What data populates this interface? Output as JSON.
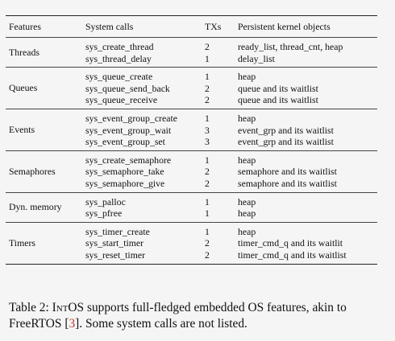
{
  "table": {
    "headers": [
      "Features",
      "System calls",
      "TXs",
      "Persistent kernel objects"
    ],
    "groups": [
      {
        "feature": "Threads",
        "rows": [
          [
            "sys_create_thread",
            "2",
            "ready_list, thread_cnt, heap"
          ],
          [
            "sys_thread_delay",
            "1",
            "delay_list"
          ]
        ]
      },
      {
        "feature": "Queues",
        "rows": [
          [
            "sys_queue_create",
            "1",
            "heap"
          ],
          [
            "sys_queue_send_back",
            "2",
            "queue and its waitlist"
          ],
          [
            "sys_queue_receive",
            "2",
            "queue and its waitlist"
          ]
        ]
      },
      {
        "feature": "Events",
        "rows": [
          [
            "sys_event_group_create",
            "1",
            "heap"
          ],
          [
            "sys_event_group_wait",
            "3",
            "event_grp and its waitlist"
          ],
          [
            "sys_event_group_set",
            "3",
            "event_grp and its waitlist"
          ]
        ]
      },
      {
        "feature": "Semaphores",
        "rows": [
          [
            "sys_create_semaphore",
            "1",
            "heap"
          ],
          [
            "sys_semaphore_take",
            "2",
            "semaphore and its waitlist"
          ],
          [
            "sys_semaphore_give",
            "2",
            "semaphore and its waitlist"
          ]
        ]
      },
      {
        "feature": "Dyn. memory",
        "rows": [
          [
            "sys_palloc",
            "1",
            "heap"
          ],
          [
            "sys_pfree",
            "1",
            "heap"
          ]
        ]
      },
      {
        "feature": "Timers",
        "rows": [
          [
            "sys_timer_create",
            "1",
            "heap"
          ],
          [
            "sys_start_timer",
            "2",
            "timer_cmd_q and its waitlit"
          ],
          [
            "sys_reset_timer",
            "2",
            "timer_cmd_q and its waitlist"
          ]
        ]
      }
    ]
  },
  "caption": {
    "prefix": "Table 2: ",
    "brand": "IntOS",
    "text_before_cite": " supports full-fledged embedded OS features, akin to FreeRTOS [",
    "cite": "3",
    "text_after_cite": "]. Some system calls are not listed."
  }
}
